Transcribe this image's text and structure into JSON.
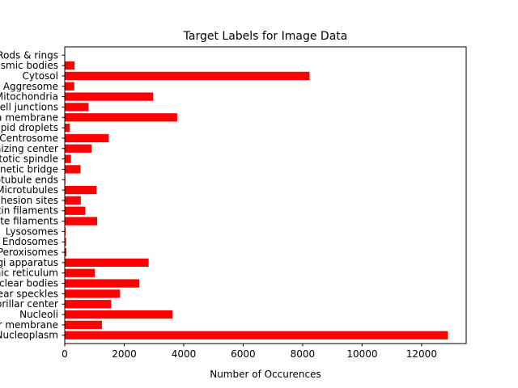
{
  "chart_data": {
    "type": "bar",
    "orientation": "horizontal",
    "title": "Target Labels for Image Data",
    "xlabel": "Number of Occurences",
    "ylabel": "",
    "xlim": [
      0,
      13500
    ],
    "x_ticks": [
      0,
      2000,
      4000,
      6000,
      8000,
      10000,
      12000
    ],
    "categories": [
      "Nucleoplasm",
      "Nuclear membrane",
      "Nucleoli",
      "Nucleoli fibrillar center",
      "Nuclear speckles",
      "Nuclear bodies",
      "Endoplasmic reticulum",
      "Golgi apparatus",
      "Peroxisomes",
      "Endosomes",
      "Lysosomes",
      "Intermediate filaments",
      "Actin filaments",
      "Focal adhesion sites",
      "Microtubules",
      "Microtubule ends",
      "Cytokinetic bridge",
      "Mitotic spindle",
      "Microtubule organizing center",
      "Centrosome",
      "Lipid droplets",
      "Plasma membrane",
      "Cell junctions",
      "Mitochondria",
      "Aggresome",
      "Cytosol",
      "Cytoplasmic bodies",
      "Rods & rings"
    ],
    "values": [
      12880,
      1250,
      3620,
      1560,
      1860,
      2510,
      1010,
      2820,
      55,
      45,
      30,
      1090,
      690,
      540,
      1070,
      20,
      530,
      210,
      900,
      1480,
      170,
      3780,
      800,
      2970,
      320,
      8230,
      330,
      10
    ],
    "bar_color": "#ff0000",
    "grid": false,
    "legend": "none"
  }
}
